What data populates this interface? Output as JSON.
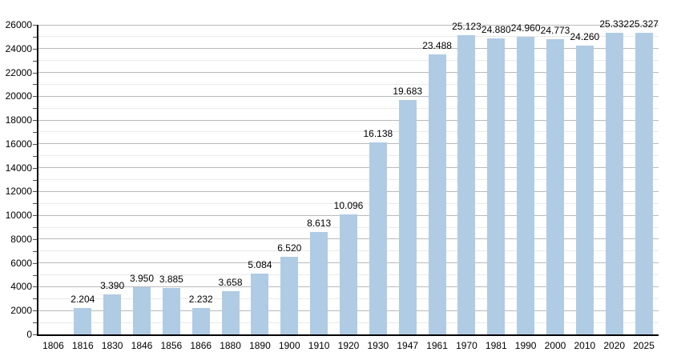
{
  "chart_data": {
    "type": "bar",
    "title": "",
    "xlabel": "",
    "ylabel": "",
    "categories": [
      "1806",
      "1816",
      "1830",
      "1846",
      "1856",
      "1866",
      "1880",
      "1890",
      "1900",
      "1910",
      "1920",
      "1930",
      "1947",
      "1961",
      "1970",
      "1981",
      "1990",
      "2000",
      "2010",
      "2020",
      "2025"
    ],
    "values": [
      null,
      2204,
      3390,
      3950,
      3885,
      2232,
      3658,
      5084,
      6520,
      8613,
      10096,
      16138,
      19683,
      23488,
      25123,
      24880,
      24960,
      24773,
      24260,
      25332,
      25327
    ],
    "value_labels": [
      "",
      "2.204",
      "3.390",
      "3.950",
      "3.885",
      "2.232",
      "3.658",
      "5.084",
      "6.520",
      "8.613",
      "10.096",
      "16.138",
      "19.683",
      "23.488",
      "25.123",
      "24.880",
      "24.960",
      "24.773",
      "24.260",
      "25.332",
      "25.327"
    ],
    "ylim": [
      0,
      26000
    ],
    "ytick_major_step": 2000,
    "ytick_minor_step": 1000,
    "ytick_labels": [
      "0",
      "2000",
      "4000",
      "6000",
      "8000",
      "10000",
      "12000",
      "14000",
      "16000",
      "18000",
      "20000",
      "22000",
      "24000",
      "26000"
    ],
    "grid": true,
    "legend": "none",
    "colors": {
      "bar_fill": "#b0cbe4",
      "major_gridline": "#b9b9b9",
      "minor_gridline": "#e9e9e9",
      "axis": "#000000",
      "text": "#000000",
      "background": "#ffffff"
    }
  }
}
